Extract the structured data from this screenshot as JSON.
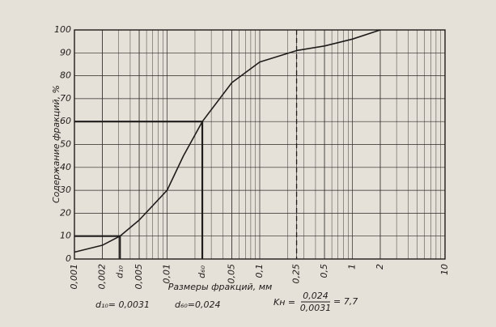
{
  "chart_data": {
    "type": "line",
    "x_label": "Размеры фракций, мм",
    "y_label": "Содержание фракций, %",
    "log_x": true,
    "grid": true,
    "color": "#1e1c1a",
    "x": [
      0.001,
      0.002,
      0.0031,
      0.005,
      0.01,
      0.015,
      0.024,
      0.05,
      0.1,
      0.25,
      0.5,
      1,
      2
    ],
    "values": [
      3,
      6,
      10,
      17,
      30,
      45,
      60,
      77,
      86,
      91,
      93,
      96,
      100
    ],
    "xlim": [
      0.001,
      10
    ],
    "ylim": [
      0,
      100
    ],
    "xticks": [
      {
        "value": 0.001,
        "label": "0,001"
      },
      {
        "value": 0.002,
        "label": "0,002"
      },
      {
        "value": 0.005,
        "label": "0,005"
      },
      {
        "value": 0.01,
        "label": "0,01"
      },
      {
        "value": 0.05,
        "label": "0,05"
      },
      {
        "value": 0.1,
        "label": "0,1"
      },
      {
        "value": 0.25,
        "label": "0,25"
      },
      {
        "value": 0.5,
        "label": "0,5"
      },
      1,
      2,
      10
    ],
    "yticks": [
      0,
      10,
      20,
      30,
      40,
      50,
      60,
      70,
      80,
      90,
      100
    ],
    "guides": [
      {
        "x": 0.0031,
        "y": 10,
        "axis_label": "d₁₀",
        "note": "d₁₀= 0,0031"
      },
      {
        "x": 0.024,
        "y": 60,
        "axis_label": "d₆₀",
        "note": "d₆₀=0,024"
      }
    ],
    "dashed_x": 0.25,
    "coefficient": {
      "name": "Kн =",
      "numerator": "0,024",
      "denominator": "0,0031",
      "result": "= 7,7"
    }
  }
}
